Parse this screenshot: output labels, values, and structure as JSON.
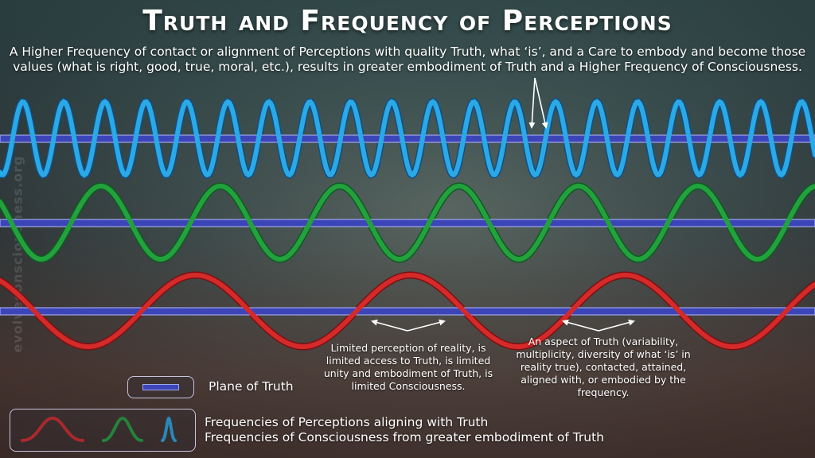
{
  "title": "Truth and Frequency of Perceptions",
  "subtitle": "A Higher Frequency of contact or alignment of Perceptions with quality Truth, what ‘is’, and a Care to embody and become those values (what is right, good, true, moral, etc.), results in greater embodiment of Truth and a Higher Frequency of Consciousness.",
  "watermark": "evolveconsciousness.org",
  "annotations": {
    "limited_perception": "Limited perception of reality, is limited access to Truth, is limited unity and embodiment of Truth, is limited Consciousness.",
    "aspect_of_truth": "An aspect of Truth (variability, multiplicity, diversity of what ‘is’ in reality true), contacted, attained, aligned with, or embodied by the frequency."
  },
  "legend": {
    "plane_label": "Plane of Truth",
    "waves_line1": "Frequencies of Perceptions aligning with Truth",
    "waves_line2": "Frequencies of Consciousness from greater embodiment of Truth"
  },
  "colors": {
    "plane": "#3c45b8",
    "plane_edge": "#9fa6ea",
    "low_frequency": "#d42a2a",
    "mid_frequency": "#22a23c",
    "high_frequency": "#2aa9e6"
  }
}
